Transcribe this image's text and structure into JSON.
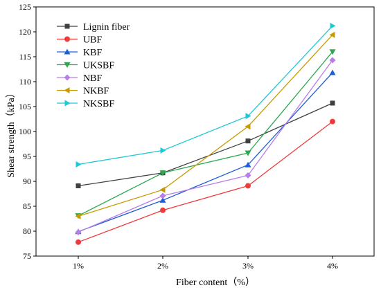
{
  "chart_data": {
    "type": "line",
    "title": "",
    "xlabel": "Fiber content（%）",
    "ylabel": "Shear strength（kPa）",
    "categories": [
      "1%",
      "2%",
      "3%",
      "4%"
    ],
    "ylim": [
      75,
      125
    ],
    "yticks": [
      75,
      80,
      85,
      90,
      95,
      100,
      105,
      110,
      115,
      120,
      125
    ],
    "grid": false,
    "legend_position": "top-left",
    "series": [
      {
        "name": "Lignin fiber",
        "color": "#404040",
        "marker": "square",
        "values": [
          89.1,
          91.7,
          98.1,
          105.7
        ]
      },
      {
        "name": "UBF",
        "color": "#ef3b3b",
        "marker": "circle",
        "values": [
          77.8,
          84.2,
          89.1,
          102.0
        ]
      },
      {
        "name": "KBF",
        "color": "#1f5ed8",
        "marker": "triangle-up",
        "values": [
          79.9,
          86.2,
          93.3,
          111.8
        ]
      },
      {
        "name": "UKSBF",
        "color": "#2ea84f",
        "marker": "triangle-down",
        "values": [
          83.1,
          91.7,
          95.7,
          116.0
        ]
      },
      {
        "name": "NBF",
        "color": "#b77ee8",
        "marker": "diamond",
        "values": [
          79.8,
          87.1,
          91.2,
          114.3
        ]
      },
      {
        "name": "NKBF",
        "color": "#c89a00",
        "marker": "triangle-left",
        "values": [
          83.0,
          88.3,
          101.0,
          119.4
        ]
      },
      {
        "name": "NKSBF",
        "color": "#1ec8d6",
        "marker": "triangle-right",
        "values": [
          93.4,
          96.2,
          103.1,
          121.2
        ]
      }
    ]
  }
}
